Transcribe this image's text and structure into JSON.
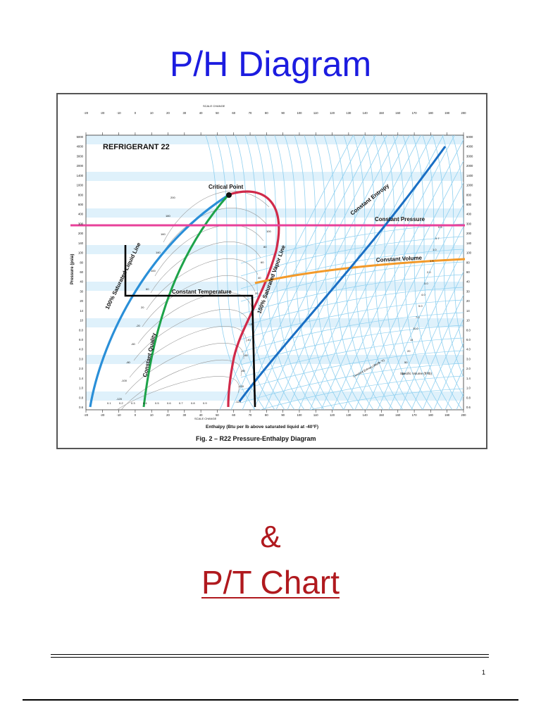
{
  "page": {
    "title": "P/H Diagram",
    "ampersand": "&",
    "subtitle": "P/T Chart",
    "page_number": "1"
  },
  "diagram": {
    "refrigerant": "REFRIGERANT 22",
    "scale_change": "SCALE CHANGE",
    "top_ticks": [
      "-20",
      "-20",
      "-10",
      "0",
      "10",
      "20",
      "30",
      "40",
      "50",
      "60",
      "70",
      "80",
      "90",
      "100",
      "110",
      "120",
      "130",
      "140",
      "150",
      "160",
      "170",
      "180",
      "190",
      "200"
    ],
    "bottom_ticks": [
      "-20",
      "-20",
      "-10",
      "0",
      "10",
      "20",
      "30",
      "40",
      "50",
      "60",
      "70",
      "80",
      "90",
      "100",
      "110",
      "120",
      "130",
      "140",
      "150",
      "160",
      "170",
      "180",
      "190",
      "200"
    ],
    "pressure_ticks": [
      "5000",
      "4000",
      "3000",
      "2000",
      "1400",
      "1000",
      "800",
      "600",
      "400",
      "300",
      "200",
      "140",
      "100",
      "80",
      "60",
      "40",
      "30",
      "20",
      "14",
      "10",
      "8.0",
      "6.0",
      "4.0",
      "3.0",
      "2.0",
      "1.4",
      "1.0",
      "0.8",
      "0.6"
    ],
    "y_axis_label": "Pressure (psia)",
    "x_axis_label": "Enthalpy (Btu per lb above saturated liquid at -40°F)",
    "caption": "Fig. 2 – R22 Pressure-Enthalpy Diagram",
    "labels": {
      "critical_point": "Critical Point",
      "constant_temperature": "Constant Temperature",
      "constant_pressure": "Constant Pressure",
      "constant_volume": "Constant Volume",
      "constant_entropy": "Constant Entropy",
      "saturated_liquid": "100% Saturated Liquid Line",
      "saturated_vapor": "100% Saturated Vapor Line",
      "constant_quality": "Constant Quality",
      "specific_volume": "Specific Volume (ft³/lb)",
      "constant_entropy_small": "Constant Entropy (Btu/lb·°F)"
    },
    "quality_ticks": [
      "0.1",
      "0.2",
      "0.3",
      "0.4",
      "0.5",
      "0.6",
      "0.7",
      "0.8",
      "0.9"
    ],
    "temp_labels_left": [
      "200",
      "180",
      "160",
      "140",
      "100",
      "60",
      "20",
      "-20",
      "-60",
      "-80",
      "-100",
      "-120"
    ],
    "temp_labels_right": [
      "100",
      "80",
      "60",
      "40",
      "20",
      "0",
      "-20",
      "-40",
      "-60",
      "-80",
      "-100",
      "-120"
    ],
    "volume_labels": [
      "0.5",
      "0.7",
      "1.0",
      "1.5",
      "2.0",
      "3.0",
      "4.0",
      "5.0",
      "7.0",
      "10.0",
      "14",
      "20",
      "50",
      "70"
    ],
    "colors": {
      "liquid_line": "#2a8fd8",
      "vapor_line": "#d02a4a",
      "constant_pressure": "#e8409a",
      "constant_volume": "#f39a2a",
      "constant_quality": "#1ea34a",
      "entropy": "#1a6fc4",
      "grid_blue": "#8fd0f0",
      "band": "#dff1fb"
    }
  }
}
